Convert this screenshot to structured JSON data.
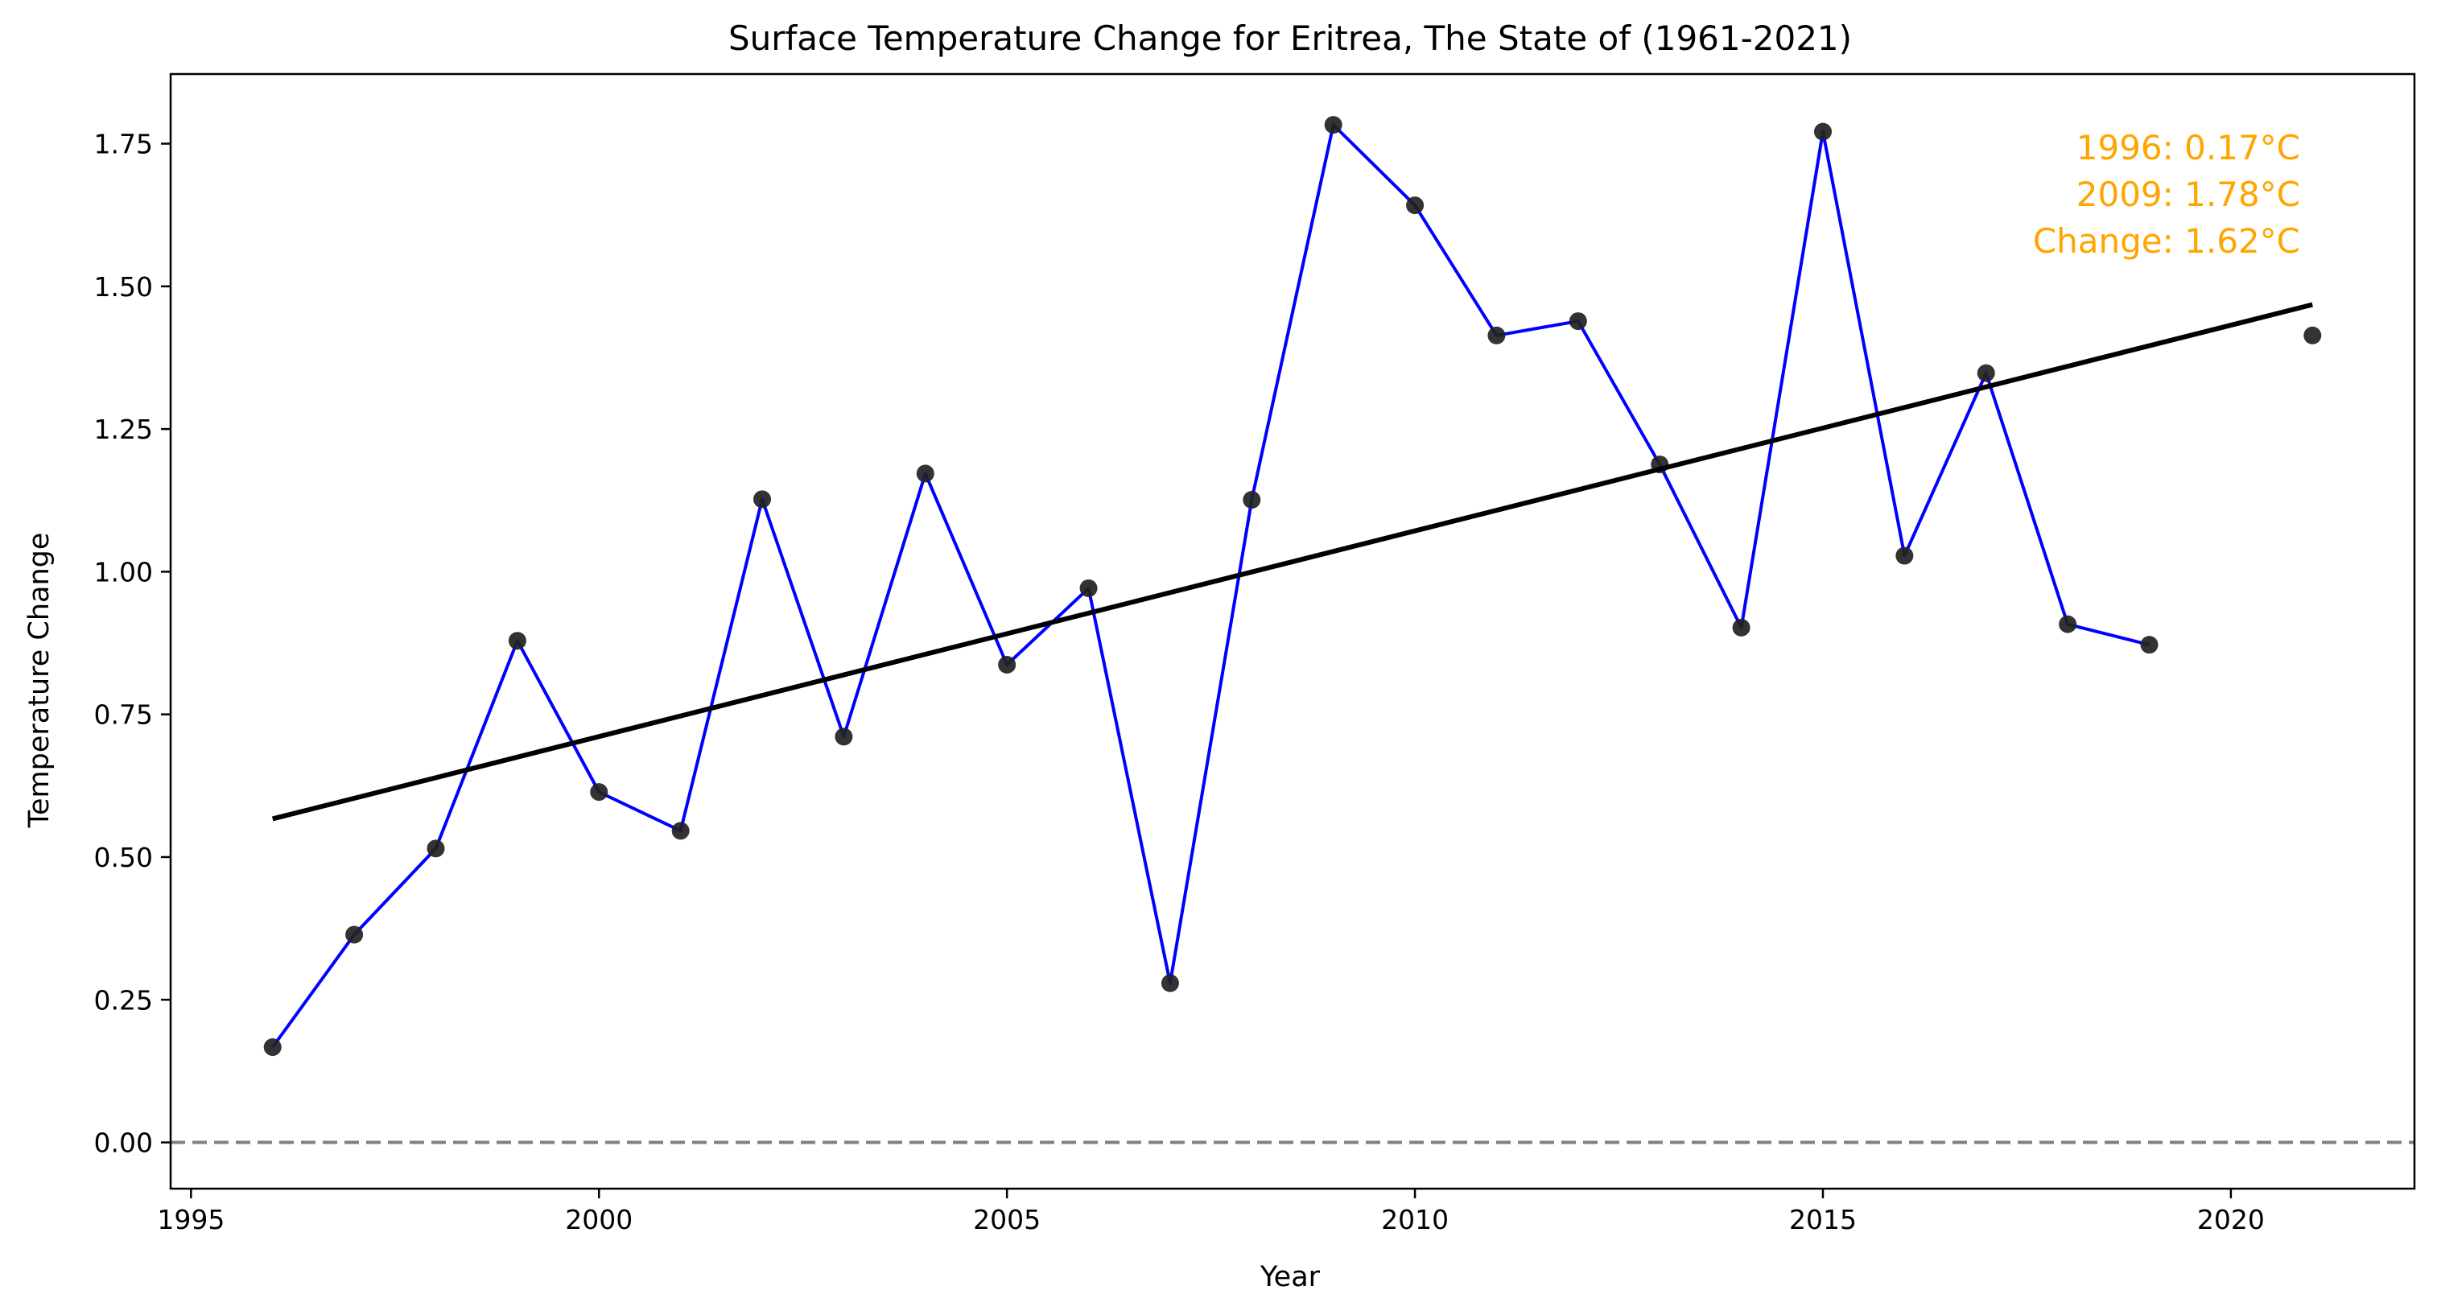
{
  "chart_data": {
    "type": "line",
    "title": "Surface Temperature Change for Eritrea, The State of (1961-2021)",
    "xlabel": "Year",
    "ylabel": "Temperature Change",
    "xlim": [
      1994.75,
      2022.25
    ],
    "ylim": [
      -0.081,
      1.872
    ],
    "x_ticks": [
      1995,
      2000,
      2005,
      2010,
      2015,
      2020
    ],
    "y_ticks": [
      0.0,
      0.25,
      0.5,
      0.75,
      1.0,
      1.25,
      1.5,
      1.75
    ],
    "y_tick_labels": [
      "0.00",
      "0.25",
      "0.50",
      "0.75",
      "1.00",
      "1.25",
      "1.50",
      "1.75"
    ],
    "grid": false,
    "series": [
      {
        "x": [
          1996,
          1997,
          1998,
          1999,
          2000,
          2001,
          2002,
          2003,
          2004,
          2005,
          2006,
          2007,
          2008,
          2009,
          2010,
          2011,
          2012,
          2013,
          2014,
          2015,
          2016,
          2017,
          2018,
          2019,
          2020,
          2021
        ],
        "values": [
          0.167,
          0.364,
          0.515,
          0.879,
          0.614,
          0.546,
          1.127,
          0.711,
          1.172,
          0.837,
          0.971,
          0.279,
          1.126,
          1.783,
          1.642,
          1.414,
          1.439,
          1.188,
          0.902,
          1.771,
          1.028,
          1.348,
          0.908,
          0.872,
          null,
          1.414
        ],
        "line_color": "#0000ff",
        "marker_color": "#222222"
      }
    ],
    "trend_line": {
      "x": [
        1996,
        2021
      ],
      "y": [
        0.567,
        1.468
      ],
      "color": "#000000"
    },
    "reference_line": {
      "y": 0.0,
      "color": "#808080",
      "style": "dashed"
    },
    "annotation": {
      "lines": [
        "1996: 0.17°C",
        "2009: 1.78°C",
        "Change: 1.62°C"
      ],
      "color": "#ffa500",
      "placement": "top-right"
    }
  }
}
